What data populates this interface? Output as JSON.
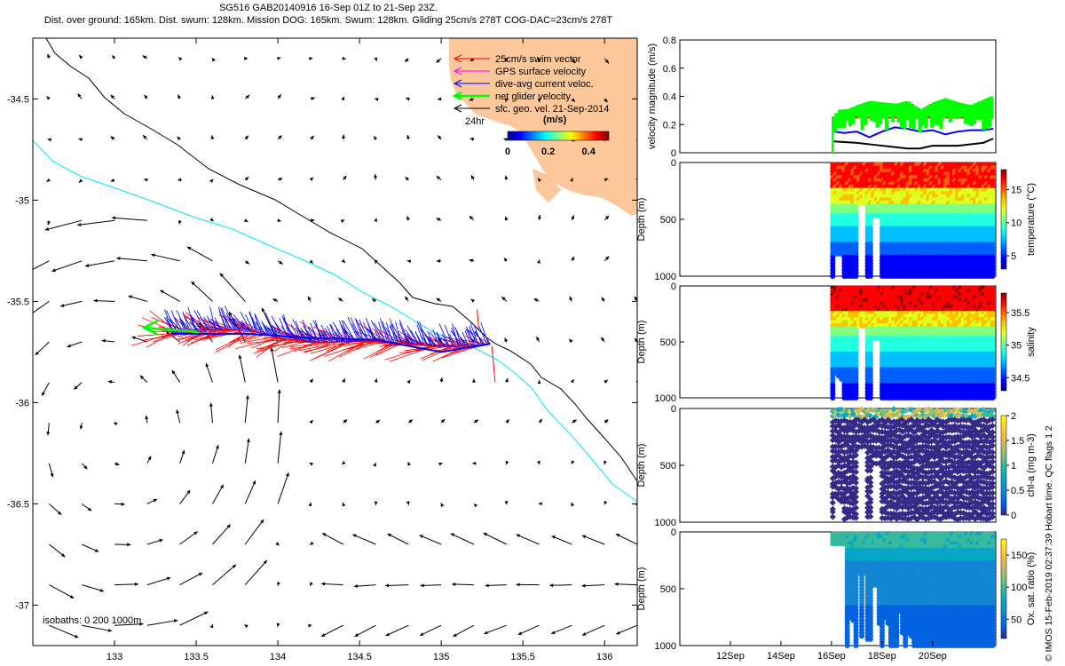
{
  "header": {
    "line1": "SG516 GAB20140916 16-Sep 01Z to 21-Sep 23Z.",
    "line2": "Dist. over ground: 165km. Dist. swum: 128km. Mission DOG: 165km. Swum: 128km. Gliding 25cm/s 278T COG-DAC=23cm/s 278T"
  },
  "copyright": "© IMOS 15-Feb-2019 02:37:39 Hobart time. QC flags 1  2",
  "colors": {
    "land": "#fcc89b",
    "swim": "#ff0000",
    "gps": "#ff00ff",
    "dac": "#0000ff",
    "net": "#00ff00",
    "geo": "#000000",
    "isobath200": "#00e5ff",
    "isobath1000": "#000000"
  },
  "chart_data": [
    {
      "type": "map",
      "xlim": [
        132.5,
        136.2
      ],
      "ylim": [
        -37.2,
        -34.2
      ],
      "x_ticks": [
        133,
        133.5,
        134,
        134.5,
        135,
        135.5,
        136
      ],
      "x_tick_labels": [
        "133",
        "133.5",
        "134",
        "134.5",
        "135",
        "135.5",
        "136"
      ],
      "y_ticks": [
        -34.5,
        -35,
        -35.5,
        -36,
        -36.5,
        -37
      ],
      "y_tick_labels": [
        "-34.5",
        "-35",
        "-35.5",
        "-36",
        "-36.5",
        "-37"
      ],
      "legend": {
        "placement": "top-right",
        "entries": [
          "25cm/s swim vector",
          "GPS surface velocity",
          "dive-avg current veloc.",
          "net glider velocity",
          "sfc. geo. vel. 21-Sep-2014"
        ],
        "colorbar_label": "(m/s)",
        "colorbar_ticks": [
          "0",
          "0.2",
          "0.4"
        ],
        "colorbar_range": [
          0,
          0.5
        ],
        "scale_label": "24hr"
      },
      "isobaths_label": "isobaths: 0   200  1000m",
      "glider_track": {
        "start": [
          135.3,
          -35.71
        ],
        "end": [
          133.35,
          -35.66
        ],
        "net_velocity_arrow_end": [
          133.18,
          -35.63
        ]
      }
    },
    {
      "type": "line",
      "ylabel": "velocity magnitude (m/s)",
      "ylim": [
        0,
        0.8
      ],
      "y_ticks": [
        0,
        0.2,
        0.4,
        0.6,
        0.8
      ],
      "y_tick_labels": [
        "0",
        "0.2",
        "0.4",
        "0.6",
        "0.8"
      ],
      "xlim": [
        10,
        22.5
      ],
      "series": [
        {
          "name": "",
          "color": "#ff0000",
          "x": [
            16.05,
            22.4
          ],
          "values": [
            0.25,
            0.25
          ]
        },
        {
          "name": "",
          "color": "#0000ff",
          "x": [
            16.1,
            16.5,
            17,
            17.5,
            18,
            18.5,
            19,
            19.5,
            20,
            20.5,
            21,
            21.5,
            22,
            22.4
          ],
          "values": [
            0.15,
            0.14,
            0.15,
            0.11,
            0.15,
            0.18,
            0.17,
            0.15,
            0.16,
            0.13,
            0.15,
            0.16,
            0.16,
            0.17
          ]
        },
        {
          "name": "",
          "color": "#000000",
          "x": [
            16.1,
            17,
            18,
            18.5,
            19,
            19.5,
            20,
            20.5,
            21,
            21.5,
            22,
            22.4
          ],
          "values": [
            0.08,
            0.07,
            0.05,
            0.04,
            0.03,
            0.03,
            0.05,
            0.05,
            0.05,
            0.06,
            0.07,
            0.1
          ]
        },
        {
          "name": "",
          "color": "#00ff00",
          "x": [
            16.05,
            16.3,
            16.6,
            17,
            17.5,
            18,
            18.5,
            19,
            19.5,
            20,
            20.5,
            21,
            21.5,
            22,
            22.4
          ],
          "values": [
            0.25,
            0.3,
            0.3,
            0.33,
            0.36,
            0.35,
            0.34,
            0.36,
            0.3,
            0.35,
            0.38,
            0.35,
            0.33,
            0.37,
            0.4
          ]
        }
      ]
    },
    {
      "type": "scatter",
      "name": "temperature",
      "ylabel": "Depth (m)",
      "ylim": [
        1000,
        0
      ],
      "y_ticks": [
        0,
        500,
        1000
      ],
      "y_tick_labels": [
        "0",
        "500",
        "1000"
      ],
      "colorbar_label": "temperature (°C)",
      "colorbar_ticks": [
        5,
        10,
        15
      ],
      "colorbar_tick_labels": [
        "5",
        "10",
        "15"
      ],
      "colorbar_range": [
        3,
        18
      ],
      "time_range": [
        16.05,
        22.4
      ]
    },
    {
      "type": "scatter",
      "name": "salinity",
      "ylabel": "Depth (m)",
      "ylim": [
        1000,
        0
      ],
      "y_ticks": [
        0,
        500,
        1000
      ],
      "y_tick_labels": [
        "0",
        "500",
        "1000"
      ],
      "colorbar_label": "salinity",
      "colorbar_ticks": [
        34.5,
        35,
        35.5
      ],
      "colorbar_tick_labels": [
        "34.5",
        "35",
        "35.5"
      ],
      "colorbar_range": [
        34.3,
        35.8
      ],
      "time_range": [
        16.05,
        22.4
      ]
    },
    {
      "type": "scatter",
      "name": "chl-a",
      "ylabel": "Depth (m)",
      "ylim": [
        1000,
        0
      ],
      "y_ticks": [
        0,
        500,
        1000
      ],
      "y_tick_labels": [
        "0",
        "500",
        "1000"
      ],
      "colorbar_label": "chl-a (mg m-3)",
      "colorbar_ticks": [
        0,
        0.5,
        1,
        1.5,
        2
      ],
      "colorbar_tick_labels": [
        "0",
        "0.5",
        "1",
        "1.5",
        "2"
      ],
      "colorbar_range": [
        0,
        2
      ],
      "time_range": [
        16.05,
        22.4
      ]
    },
    {
      "type": "scatter",
      "name": "oxygen",
      "ylabel": "Depth (m)",
      "ylim": [
        1000,
        0
      ],
      "y_ticks": [
        0,
        500,
        1000
      ],
      "y_tick_labels": [
        "0",
        "500",
        "1000"
      ],
      "colorbar_label": "Ox. sat. ratio (%)",
      "colorbar_ticks": [
        50,
        100,
        150
      ],
      "colorbar_tick_labels": [
        "50",
        "100",
        "150"
      ],
      "colorbar_range": [
        20,
        175
      ],
      "time_range": [
        16.05,
        22.4
      ],
      "x_ticks": [
        12,
        14,
        16,
        18,
        20
      ],
      "x_tick_labels": [
        "12Sep",
        "14Sep",
        "16Sep",
        "18Sep",
        "20Sep"
      ]
    }
  ]
}
